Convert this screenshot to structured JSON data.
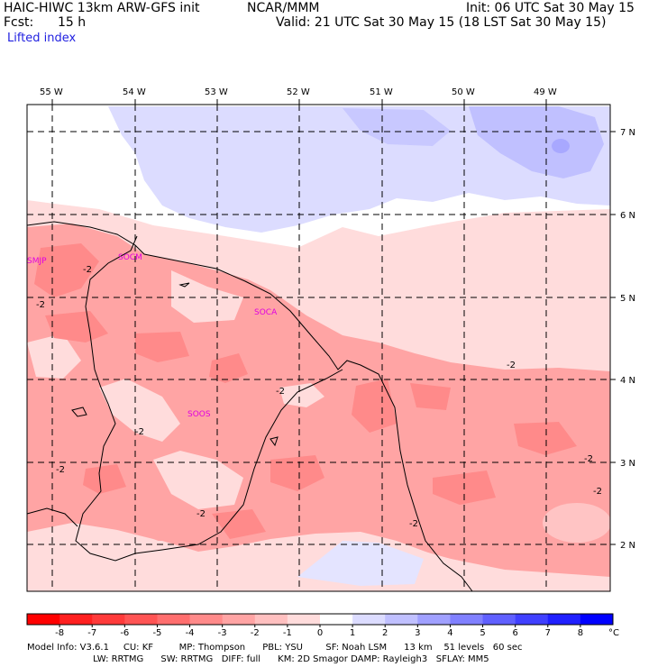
{
  "header": {
    "model": "HAIC-HIWC 13km ARW-GFS init",
    "org": "NCAR/MMM",
    "init": "Init: 06 UTC Sat 30 May 15",
    "fcst_label": "Fcst:",
    "fcst_value": "15 h",
    "valid": "Valid: 21 UTC Sat 30 May 15 (18 LST Sat 30 May 15)",
    "field": "Lifted index"
  },
  "map": {
    "lon_labels": [
      "55 W",
      "54 W",
      "53 W",
      "52 W",
      "51 W",
      "50 W",
      "49 W"
    ],
    "lat_labels": [
      "7 N",
      "6 N",
      "5 N",
      "4 N",
      "3 N",
      "2 N"
    ],
    "stations": [
      "SMJP",
      "SOCM",
      "SOCA",
      "SOOS"
    ],
    "contour_labels": [
      "-2",
      "-2",
      "-2",
      "-2",
      "-2",
      "-2",
      "-2",
      "-2",
      "-2",
      "-2",
      "-2",
      "-2"
    ]
  },
  "colorbar": {
    "ticks": [
      "-8",
      "-7",
      "-6",
      "-5",
      "-4",
      "-3",
      "-2",
      "-1",
      "0",
      "1",
      "2",
      "3",
      "4",
      "5",
      "6",
      "7",
      "8"
    ],
    "unit": "°C",
    "colors": [
      "#ff0000",
      "#ff2020",
      "#ff3a3a",
      "#ff5454",
      "#ff6e6e",
      "#ff8a8a",
      "#ffa4a4",
      "#ffc0c0",
      "#ffdcdc",
      "#ffffff",
      "#dcdcff",
      "#c0c0ff",
      "#a0a0ff",
      "#8080ff",
      "#6060ff",
      "#4040ff",
      "#2020ff",
      "#0000ff"
    ]
  },
  "footer": {
    "line1": "Model Info: V3.6.1     CU: KF         MP: Thompson      PBL: YSU        SF: Noah LSM      13 km    51 levels   60 sec",
    "line2": "                       LW: RRTMG      SW: RRTMG   DIFF: full      KM: 2D Smagor DAMP: Rayleigh3   SFLAY: MM5"
  }
}
